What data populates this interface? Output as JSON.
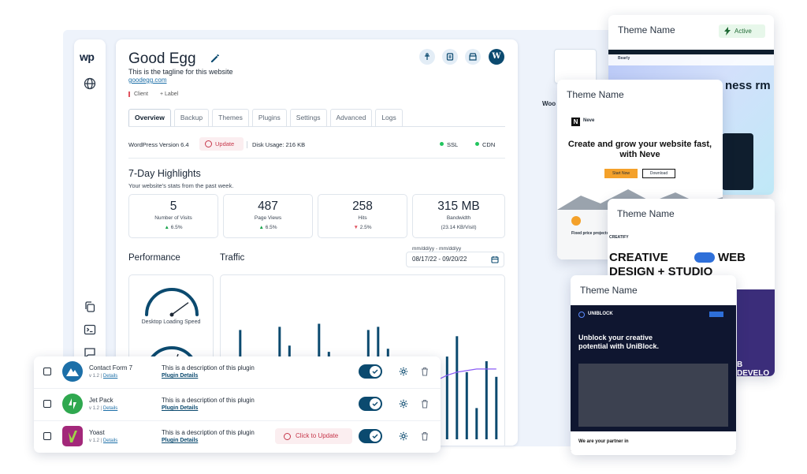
{
  "sidebar": {
    "logo": "wp"
  },
  "site": {
    "title": "Good Egg",
    "tagline": "This is the tagline for this website",
    "url": "goodegg.com",
    "client_chip": "Client",
    "label_chip": "+ Label"
  },
  "tabs": [
    "Overview",
    "Backup",
    "Themes",
    "Plugins",
    "Settings",
    "Advanced",
    "Logs"
  ],
  "status": {
    "wp_version": "WordPress Version 6.4",
    "update": "Update",
    "disk": "Disk Usage:  216 KB",
    "ssl": "SSL",
    "cdn": "CDN"
  },
  "highlights": {
    "title": "7-Day Highlights",
    "subtitle": "Your website's stats from the past week.",
    "stats": [
      {
        "value": "5",
        "label": "Number of Visits",
        "change": "6.5%",
        "dir": "up"
      },
      {
        "value": "487",
        "label": "Page Views",
        "change": "6.5%",
        "dir": "up"
      },
      {
        "value": "258",
        "label": "Hits",
        "change": "2.5%",
        "dir": "down"
      },
      {
        "value": "315 MB",
        "label": "Bandwidth",
        "change": "(23.14 KB/Visit)",
        "dir": "none"
      }
    ]
  },
  "performance": {
    "title": "Performance",
    "gauge_label": "Desktop Loading Speed",
    "gauge_level": 0.8
  },
  "traffic": {
    "title": "Traffic",
    "date_placeholder": "mm/dd/yy - mm/dd/yy",
    "date_value": "08/17/22 - 09/20/22"
  },
  "chart_data": {
    "type": "bar",
    "title": "Traffic",
    "values": [
      42,
      70,
      32,
      28,
      35,
      72,
      60,
      47,
      28,
      74,
      56,
      46,
      43,
      25,
      70,
      72,
      58,
      46,
      35,
      27,
      48,
      30,
      53,
      66,
      43,
      20,
      50,
      40
    ],
    "overlay_line": [
      2,
      2,
      2,
      2,
      2,
      2,
      2,
      2,
      2,
      2,
      3,
      3,
      4,
      6,
      8,
      11,
      15,
      20,
      25,
      30,
      35,
      38,
      41,
      43,
      44,
      45,
      45,
      45
    ],
    "ylim": [
      0,
      100
    ],
    "xlabel": "",
    "ylabel": "",
    "bar_color": "#0b4a6f",
    "line_color": "#8b5cf6"
  },
  "plugins": [
    {
      "name": "Contact Form 7",
      "version": "v 1.2",
      "details": "Details",
      "desc": "This is a description of this plugin",
      "link": "Plugin Details",
      "update": "",
      "logo_color": "#1c6fa8"
    },
    {
      "name": "Jet Pack",
      "version": "v 1.2",
      "details": "Details",
      "desc": "This is a description of this plugin",
      "link": "Plugin Details",
      "update": "",
      "logo_color": "#2fa84f"
    },
    {
      "name": "Yoast",
      "version": "v 1.2",
      "details": "Details",
      "desc": "This is a description of this plugin",
      "link": "Plugin Details",
      "update": "Click to Update",
      "logo_color": "#a3287a"
    }
  ],
  "themes": {
    "woo_label": "Woo",
    "cards": [
      {
        "name": "Theme Name",
        "badge": "Active",
        "hero": "ness rm",
        "nav": "Bearly"
      },
      {
        "name": "Theme Name",
        "brand": "Neve",
        "hero": "Create and grow your website fast, with Neve",
        "primary": "Start Now",
        "secondary": "Download",
        "feature": "Fixed price projects"
      },
      {
        "name": "Theme Name",
        "brand": "CREATIFY",
        "hero1": "CREATIVE",
        "hero2": "WEB",
        "hero3": "DESIGN + STUDIO",
        "tail": "B DEVELO"
      },
      {
        "name": "Theme Name",
        "brand": "UNIBLOCK",
        "hero": "Unblock your creative potential with UniBlock.",
        "tail": "We are your partner in"
      }
    ]
  }
}
